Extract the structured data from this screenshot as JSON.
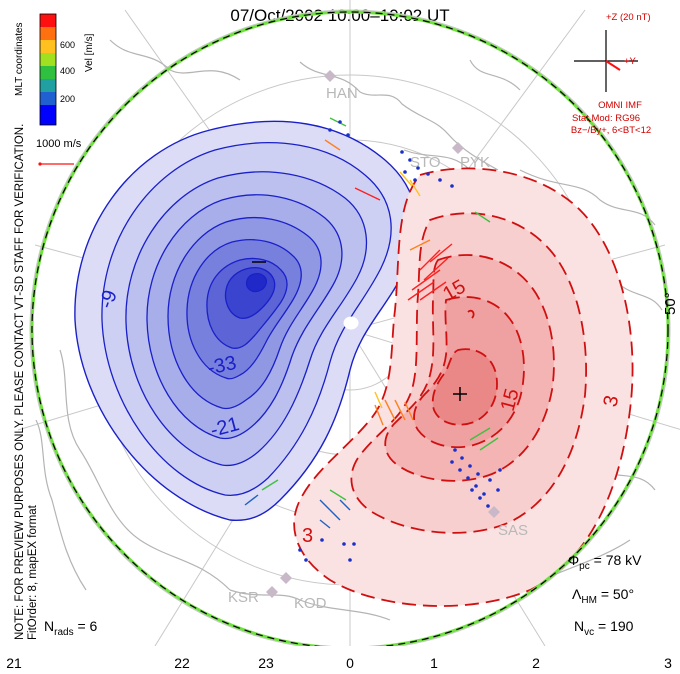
{
  "title": "07/Oct/2002 10:00–10:02 UT",
  "side_note": {
    "line1": "NOTE: FOR PREVIEW PURPOSES ONLY. PLEASE CONTACT VT-SD STAFF FOR VERIFICATION.",
    "line2": "FitOrder: 8, mapEX format"
  },
  "coordinates_label": "MLT coordinates",
  "colorbar": {
    "label": "Vel [m/s]",
    "ticks": [
      "600",
      "400",
      "200"
    ],
    "colors": [
      "#0000ff",
      "#2060d0",
      "#20a0a0",
      "#30c040",
      "#a0e020",
      "#ffc020",
      "#ff7010",
      "#ff1010"
    ]
  },
  "reference_vector": "1000 m/s",
  "imf": {
    "z_label": "+Z (20 nT)",
    "y_label": "+Y",
    "source": "OMNI IMF",
    "model": "Stat Mod: RG96",
    "conditions": "Bz−/By+, 6<BT<12"
  },
  "stations": [
    "HAN",
    "STO",
    "PYK",
    "SAS",
    "KSR",
    "KOD"
  ],
  "latitude_label": "50°",
  "contour_labels": [
    "-9",
    "-33",
    "-21",
    "15",
    "15",
    "3",
    "3"
  ],
  "stats": {
    "phi_pc_symbol": "Φ",
    "phi_pc_sub": "pc",
    "phi_pc_value": "= 78 kV",
    "lambda_symbol": "Λ",
    "lambda_sub": "HM",
    "lambda_value": "= 50°",
    "nvc_symbol": "N",
    "nvc_sub": "vc",
    "nvc_value": "= 190",
    "nrads_symbol": "N",
    "nrads_sub": "rads",
    "nrads_value": "= 6"
  },
  "mlt_ticks": [
    "21",
    "22",
    "23",
    "0",
    "1",
    "2",
    "3"
  ],
  "colors": {
    "negative_contour": "#1a20c8",
    "positive_contour": "#d01010",
    "boundary": "#70e040"
  }
}
